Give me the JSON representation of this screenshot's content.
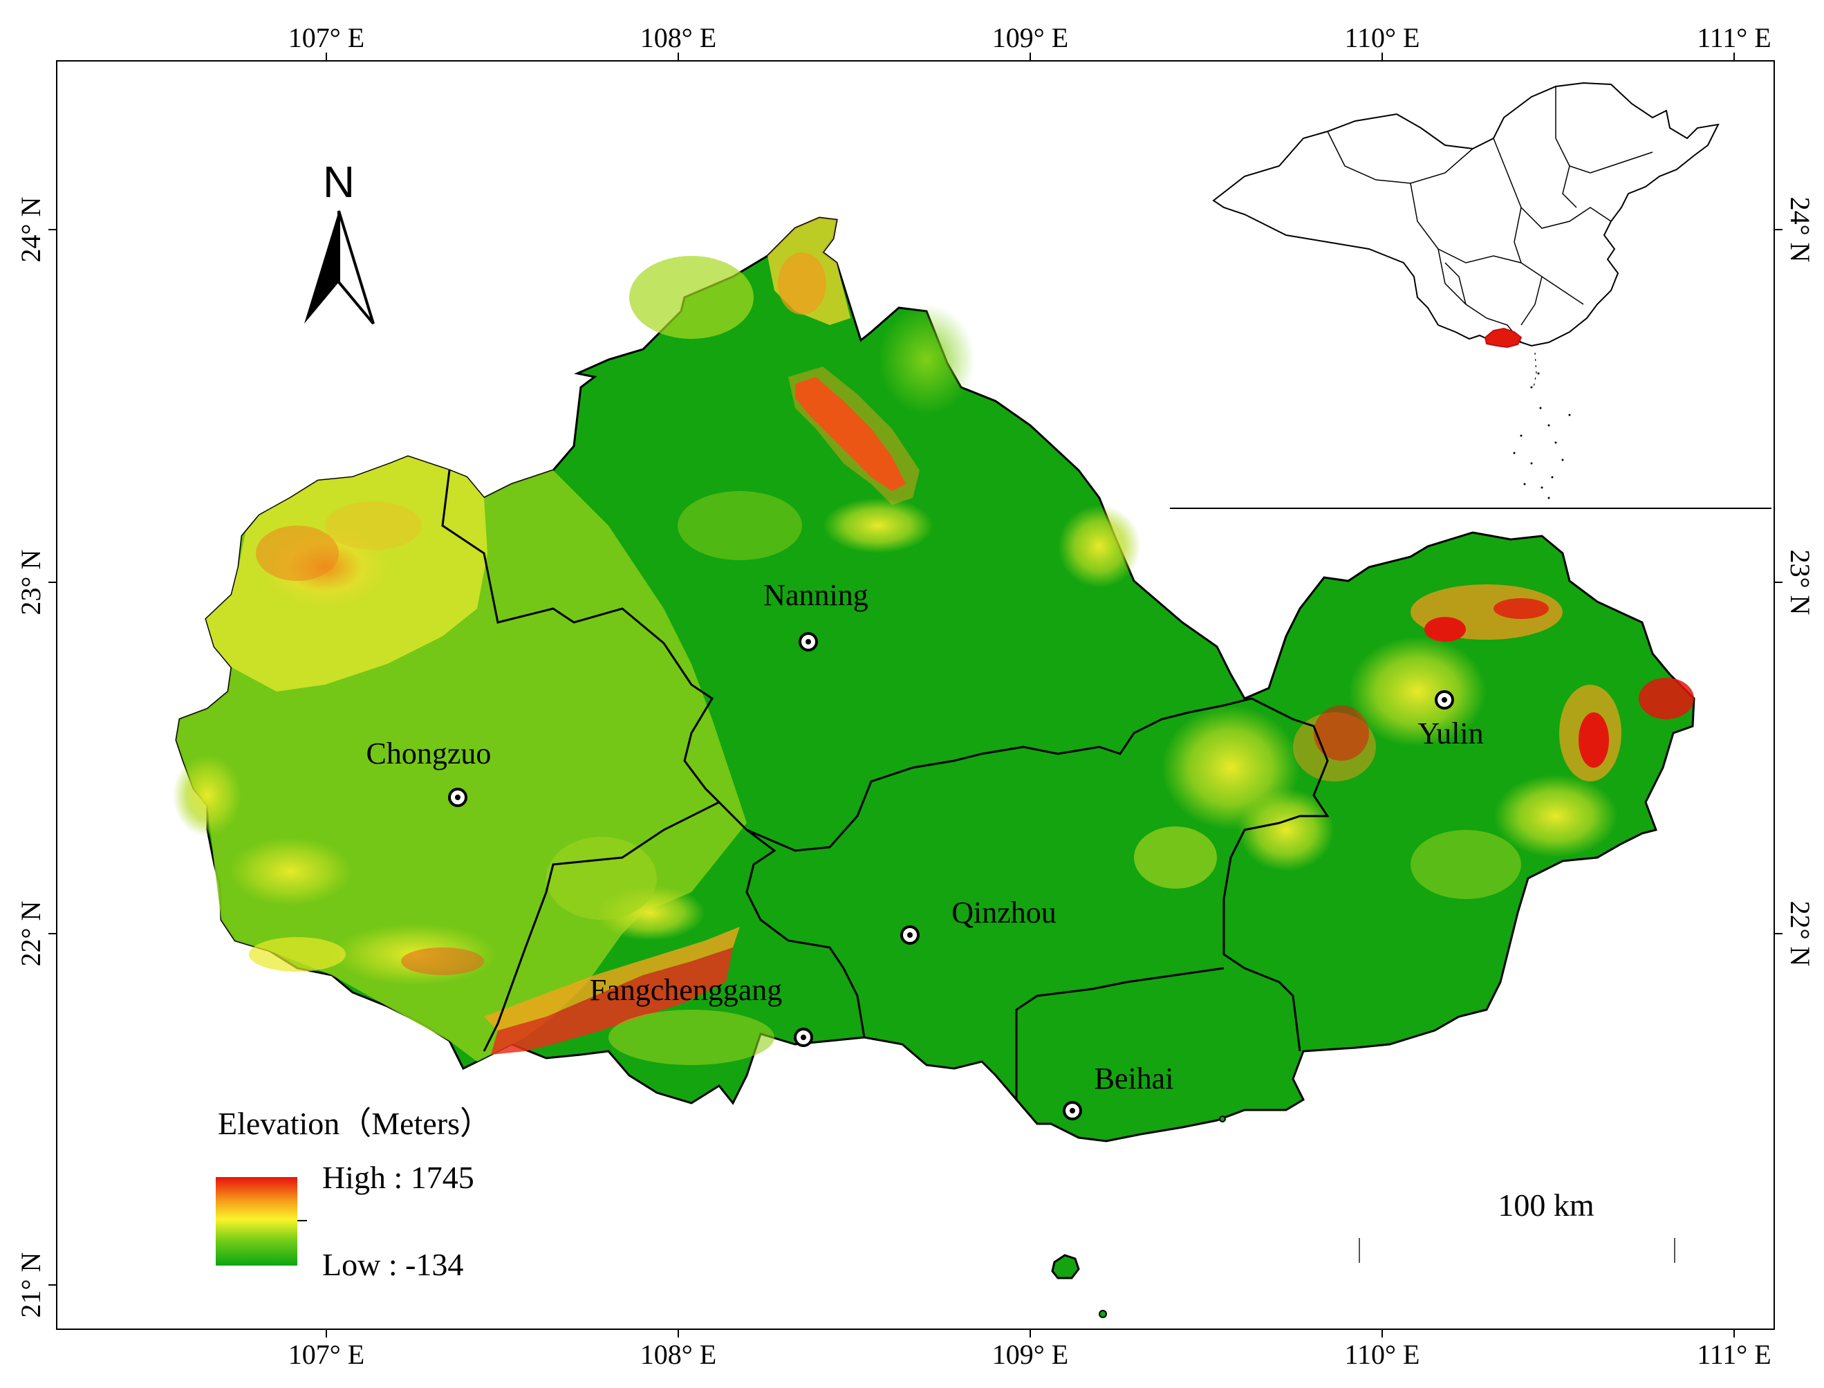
{
  "axes": {
    "top_ticks": [
      "107° E",
      "108° E",
      "109° E",
      "110° E",
      "111° E"
    ],
    "bottom_ticks": [
      "107° E",
      "108° E",
      "109° E",
      "110° E",
      "111° E"
    ],
    "left_ticks": [
      "24° N",
      "23° N",
      "22° N",
      "21° N"
    ],
    "right_ticks": [
      "24° N",
      "23° N",
      "22° N"
    ]
  },
  "north_arrow": {
    "label": "N"
  },
  "legend": {
    "title": "Elevation（Meters）",
    "high_label": "High : 1745",
    "low_label": "Low : -134",
    "colors": [
      "#e8120c",
      "#f7a21b",
      "#f8f42a",
      "#73cc16",
      "#0ca612"
    ]
  },
  "scale_bar": {
    "label": "100 km"
  },
  "cities": [
    {
      "name": "Nanning",
      "label": "Nanning"
    },
    {
      "name": "Chongzuo",
      "label": "Chongzuo"
    },
    {
      "name": "Yulin",
      "label": "Yulin"
    },
    {
      "name": "Qinzhou",
      "label": "Qinzhou"
    },
    {
      "name": "Fangchenggang",
      "label": "Fangchenggang"
    },
    {
      "name": "Beihai",
      "label": "Beihai"
    }
  ],
  "colors": {
    "lowland": "#109e0e",
    "midland": "#5cc415",
    "upland": "#d8e62a",
    "highland": "#f4a21c",
    "peak": "#e3180d",
    "highlight_region": "#e3180d"
  }
}
